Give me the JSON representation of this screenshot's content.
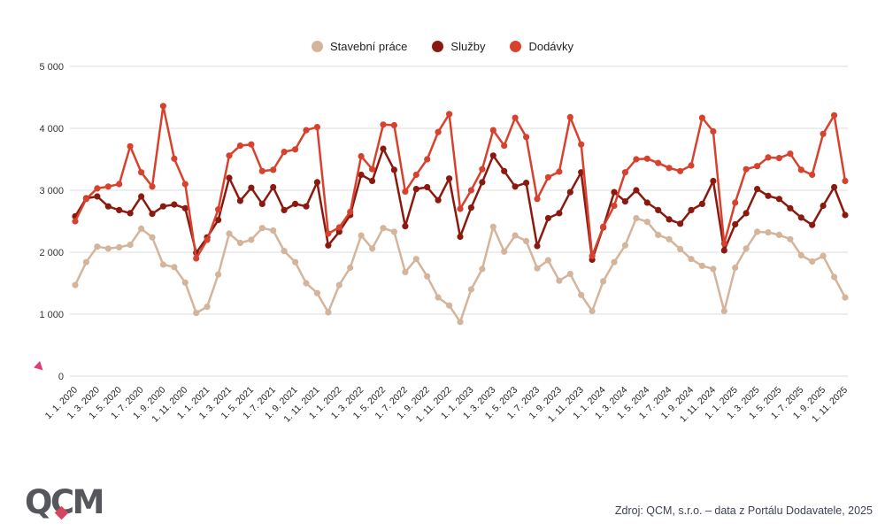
{
  "footer": {
    "source_text": "Zdroj: QCM, s.r.o. – data z Portálu Dodavatele, 2025"
  },
  "logo": {
    "text": "QCM",
    "diamond_color": "#d4455e",
    "text_color": "#55575c"
  },
  "decorations": {
    "left_marker_color": "#e23b7a"
  },
  "chart_data": {
    "type": "line",
    "title": "",
    "legend_position": "top-center",
    "grid": "horizontal",
    "ylim": [
      0,
      5000
    ],
    "y_tick_step": 1000,
    "y_tick_labels": [
      "0",
      "1 000",
      "2 000",
      "3 000",
      "4 000",
      "5 000"
    ],
    "x_start": "1. 1. 2020",
    "x_end": "1. 11. 2025",
    "points_are_monthly": true,
    "x_labels": [
      "1. 1. 2020",
      "1. 3. 2020",
      "1. 5. 2020",
      "1. 7. 2020",
      "1. 9. 2020",
      "1. 11. 2020",
      "1. 1. 2021",
      "1. 3. 2021",
      "1. 5. 2021",
      "1. 7. 2021",
      "1. 9. 2021",
      "1. 11. 2021",
      "1. 1. 2022",
      "1. 3. 2022",
      "1. 5. 2022",
      "1. 7. 2022",
      "1. 9. 2022",
      "1. 11. 2022",
      "1. 1. 2023",
      "1. 3. 2023",
      "1. 5. 2023",
      "1. 7. 2023",
      "1. 9. 2023",
      "1. 11. 2023",
      "1. 1. 2024",
      "1. 3. 2024",
      "1. 5. 2024",
      "1. 7. 2024",
      "1. 9. 2024",
      "1. 11. 2024",
      "1. 1. 2025",
      "1. 3. 2025",
      "1. 5. 2025",
      "1. 7. 2025",
      "1. 9. 2025",
      "1. 11. 2025"
    ],
    "series": [
      {
        "name": "Stavební práce",
        "color": "#d5b49c",
        "values": [
          1470,
          1840,
          2090,
          2060,
          2080,
          2120,
          2380,
          2240,
          1800,
          1760,
          1510,
          1020,
          1120,
          1640,
          2300,
          2150,
          2200,
          2390,
          2350,
          2020,
          1840,
          1500,
          1340,
          1030,
          1470,
          1750,
          2270,
          2060,
          2390,
          2330,
          1680,
          1890,
          1610,
          1270,
          1140,
          875,
          1400,
          1730,
          2410,
          2010,
          2270,
          2180,
          1740,
          1870,
          1540,
          1650,
          1310,
          1050,
          1530,
          1840,
          2110,
          2550,
          2490,
          2280,
          2210,
          2050,
          1890,
          1780,
          1730,
          1050,
          1750,
          2060,
          2330,
          2320,
          2280,
          2210,
          1950,
          1850,
          1940,
          1600,
          1270
        ]
      },
      {
        "name": "Služby",
        "color": "#8a1a10",
        "values": [
          2580,
          2870,
          2900,
          2740,
          2680,
          2630,
          2900,
          2620,
          2740,
          2770,
          2710,
          1990,
          2240,
          2520,
          3200,
          2830,
          3040,
          2780,
          3050,
          2680,
          2780,
          2740,
          3130,
          2110,
          2330,
          2600,
          3250,
          3150,
          3670,
          3330,
          2420,
          3020,
          3050,
          2840,
          3190,
          2250,
          2720,
          3130,
          3560,
          3310,
          3060,
          3120,
          2100,
          2550,
          2630,
          2970,
          3290,
          1880,
          2400,
          2970,
          2820,
          3000,
          2800,
          2680,
          2530,
          2460,
          2680,
          2780,
          3150,
          2030,
          2450,
          2630,
          3020,
          2910,
          2860,
          2710,
          2560,
          2440,
          2750,
          3050,
          2600
        ]
      },
      {
        "name": "Dodávky",
        "color": "#d7422e",
        "values": [
          2500,
          2860,
          3030,
          3060,
          3100,
          3710,
          3290,
          3060,
          4360,
          3510,
          3100,
          1900,
          2200,
          2690,
          3560,
          3720,
          3740,
          3310,
          3330,
          3620,
          3660,
          3970,
          4020,
          2300,
          2400,
          2650,
          3550,
          3340,
          4060,
          4050,
          2980,
          3250,
          3500,
          3940,
          4230,
          2700,
          3000,
          3340,
          3970,
          3720,
          4170,
          3860,
          2860,
          3210,
          3300,
          4180,
          3740,
          1940,
          2410,
          2750,
          3290,
          3500,
          3510,
          3440,
          3360,
          3310,
          3400,
          4170,
          3950,
          2140,
          2800,
          3340,
          3390,
          3530,
          3520,
          3590,
          3330,
          3250,
          3910,
          4210,
          3150
        ]
      }
    ]
  }
}
